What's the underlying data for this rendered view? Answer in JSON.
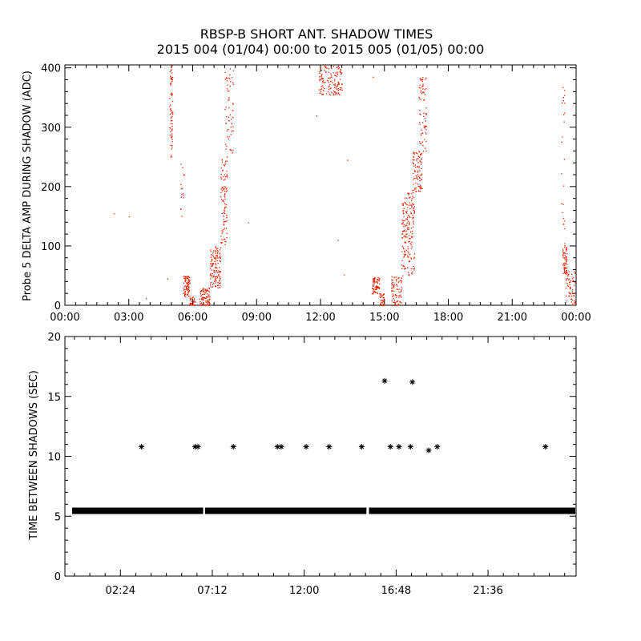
{
  "page": {
    "title_line1": "RBSP-B SHORT ANT. SHADOW TIMES",
    "title_line2": "2015 004 (01/04) 00:00 to 2015 005 (01/05) 00:00"
  },
  "colors": {
    "red_points": "#ee2200",
    "black": "#000000"
  },
  "chart_data": [
    {
      "type": "scatter",
      "ylabel": "Probe 5 DELTA AMP DURING SHADOW (ADC)",
      "x_range_hours": [
        0,
        24
      ],
      "ylim": [
        0,
        405
      ],
      "x_tick_hours": [
        0,
        3,
        6,
        9,
        12,
        15,
        18,
        21,
        24
      ],
      "x_tick_labels": [
        "00:00",
        "03:00",
        "06:00",
        "09:00",
        "12:00",
        "15:00",
        "18:00",
        "21:00",
        "00:00"
      ],
      "y_ticks": [
        0,
        100,
        200,
        300,
        400
      ],
      "y_tick_labels": [
        "0",
        "100",
        "200",
        "300",
        "400"
      ],
      "x_minor_per_major": 6,
      "y_minor_per_major": 5,
      "point_color": "#ee2200",
      "point_clusters": [
        {
          "x_hours": [
            4.9,
            5.05
          ],
          "y": [
            250,
            405
          ],
          "n": 70
        },
        {
          "x_hours": [
            5.4,
            5.6
          ],
          "y": [
            150,
            250
          ],
          "n": 15
        },
        {
          "x_hours": [
            5.55,
            5.85
          ],
          "y": [
            15,
            50
          ],
          "n": 80
        },
        {
          "x_hours": [
            5.85,
            6.1
          ],
          "y": [
            0,
            15
          ],
          "n": 30
        },
        {
          "x_hours": [
            6.3,
            6.8
          ],
          "y": [
            0,
            30
          ],
          "n": 90
        },
        {
          "x_hours": [
            6.8,
            7.3
          ],
          "y": [
            30,
            100
          ],
          "n": 130
        },
        {
          "x_hours": [
            7.3,
            7.6
          ],
          "y": [
            100,
            250
          ],
          "n": 90
        },
        {
          "x_hours": [
            7.5,
            7.9
          ],
          "y": [
            250,
            405
          ],
          "n": 60
        },
        {
          "x_hours": [
            11.9,
            13.0
          ],
          "y": [
            355,
            405
          ],
          "n": 140
        },
        {
          "x_hours": [
            14.4,
            14.75
          ],
          "y": [
            20,
            50
          ],
          "n": 70
        },
        {
          "x_hours": [
            14.75,
            15.0
          ],
          "y": [
            0,
            20
          ],
          "n": 35
        },
        {
          "x_hours": [
            15.3,
            15.8
          ],
          "y": [
            0,
            50
          ],
          "n": 80
        },
        {
          "x_hours": [
            15.8,
            16.4
          ],
          "y": [
            50,
            190
          ],
          "n": 180
        },
        {
          "x_hours": [
            16.3,
            16.75
          ],
          "y": [
            190,
            260
          ],
          "n": 90
        },
        {
          "x_hours": [
            16.6,
            16.95
          ],
          "y": [
            260,
            385
          ],
          "n": 70
        },
        {
          "x_hours": [
            23.35,
            23.55
          ],
          "y": [
            50,
            100
          ],
          "n": 60
        },
        {
          "x_hours": [
            23.5,
            23.95
          ],
          "y": [
            0,
            60
          ],
          "n": 60
        },
        {
          "x_hours": [
            23.3,
            23.45
          ],
          "y": [
            100,
            380
          ],
          "n": 25
        }
      ],
      "isolated_points": [
        {
          "x": 2.3,
          "y": 155
        },
        {
          "x": 3.0,
          "y": 150
        },
        {
          "x": 3.8,
          "y": 12
        },
        {
          "x": 4.8,
          "y": 45
        },
        {
          "x": 8.6,
          "y": 140
        },
        {
          "x": 11.8,
          "y": 320
        },
        {
          "x": 12.8,
          "y": 110
        },
        {
          "x": 13.1,
          "y": 52
        },
        {
          "x": 13.25,
          "y": 245
        },
        {
          "x": 14.45,
          "y": 385
        }
      ]
    },
    {
      "type": "scatter",
      "ylabel": "TIME BETWEEN SHADOWS (SEC)",
      "x_range_hours": [
        -0.5,
        26.2
      ],
      "ylim": [
        0,
        20
      ],
      "x_tick_hours": [
        2.4,
        7.2,
        12.0,
        16.8,
        21.6
      ],
      "x_tick_labels": [
        "02:24",
        "07:12",
        "12:00",
        "16:48",
        "21:36"
      ],
      "y_ticks": [
        0,
        5,
        10,
        15,
        20
      ],
      "y_tick_labels": [
        "0",
        "5",
        "10",
        "15",
        "20"
      ],
      "x_minor_per_major": 6,
      "y_minor_per_major": 5,
      "marker": "asterisk",
      "baseline": {
        "y": 5.45,
        "gaps_hours": [
          [
            6.72,
            6.82
          ],
          [
            15.25,
            15.38
          ]
        ]
      },
      "points": [
        {
          "x": 3.5,
          "y": 10.8
        },
        {
          "x": 6.3,
          "y": 10.8
        },
        {
          "x": 6.45,
          "y": 10.8
        },
        {
          "x": 8.3,
          "y": 10.8
        },
        {
          "x": 10.6,
          "y": 10.8
        },
        {
          "x": 10.8,
          "y": 10.8
        },
        {
          "x": 12.1,
          "y": 10.8
        },
        {
          "x": 13.3,
          "y": 10.8
        },
        {
          "x": 15.0,
          "y": 10.8
        },
        {
          "x": 16.2,
          "y": 16.3
        },
        {
          "x": 16.5,
          "y": 10.8
        },
        {
          "x": 16.95,
          "y": 10.8
        },
        {
          "x": 17.55,
          "y": 10.8
        },
        {
          "x": 17.65,
          "y": 16.2
        },
        {
          "x": 18.5,
          "y": 10.5
        },
        {
          "x": 18.95,
          "y": 10.8
        },
        {
          "x": 24.6,
          "y": 10.8
        }
      ]
    }
  ]
}
